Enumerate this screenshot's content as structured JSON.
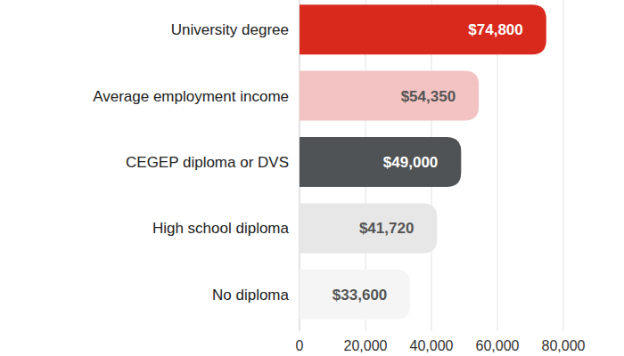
{
  "chart_data": {
    "type": "bar",
    "orientation": "horizontal",
    "categories": [
      "University degree",
      "Average employment income",
      "CEGEP diploma or DVS",
      "High school diploma",
      "No diploma"
    ],
    "values": [
      74800,
      54350,
      49000,
      41720,
      33600
    ],
    "value_labels": [
      "$74,800",
      "$54,350",
      "$49,000",
      "$41,720",
      "$33,600"
    ],
    "colors": [
      "#d9291c",
      "#f2c3c2",
      "#505355",
      "#e7e7e7",
      "#f4f5f4"
    ],
    "xlim": [
      0,
      80000
    ],
    "xticks": [
      0,
      {
        "value": 20000,
        "label": "20,000"
      },
      {
        "value": 40000,
        "label": "40,000"
      },
      {
        "value": 60000,
        "label": "60,000"
      },
      {
        "value": 80000,
        "label": "80,000"
      }
    ],
    "grid": true,
    "data_labels": true
  }
}
